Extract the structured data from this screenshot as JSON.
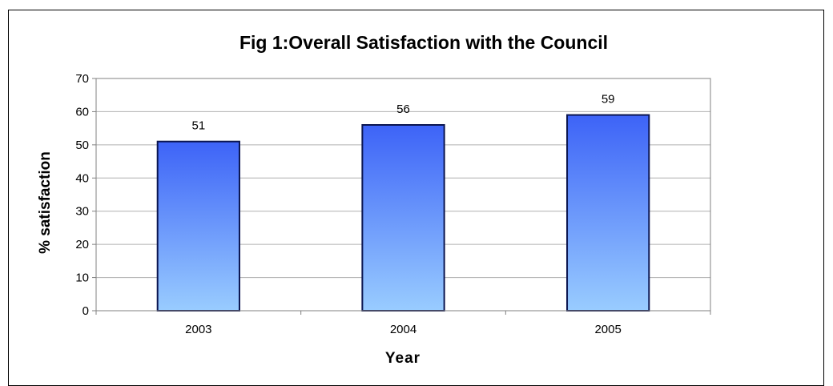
{
  "chart_data": {
    "type": "bar",
    "title": "Fig 1:Overall Satisfaction with the Council",
    "xlabel": "Year",
    "ylabel": "% satisfaction",
    "categories": [
      "2003",
      "2004",
      "2005"
    ],
    "values": [
      51,
      56,
      59
    ],
    "data_labels": [
      "51",
      "56",
      "59"
    ],
    "ylim": [
      0,
      70
    ],
    "yticks": [
      0,
      10,
      20,
      30,
      40,
      50,
      60,
      70
    ],
    "grid": true,
    "legend": "none",
    "colors": {
      "bar_top": "#3d63f7",
      "bar_bottom": "#99ccff",
      "bar_edge": "#0a1550",
      "grid": "#b0b0b0",
      "axis": "#808080",
      "plot_border": "#808080"
    }
  }
}
